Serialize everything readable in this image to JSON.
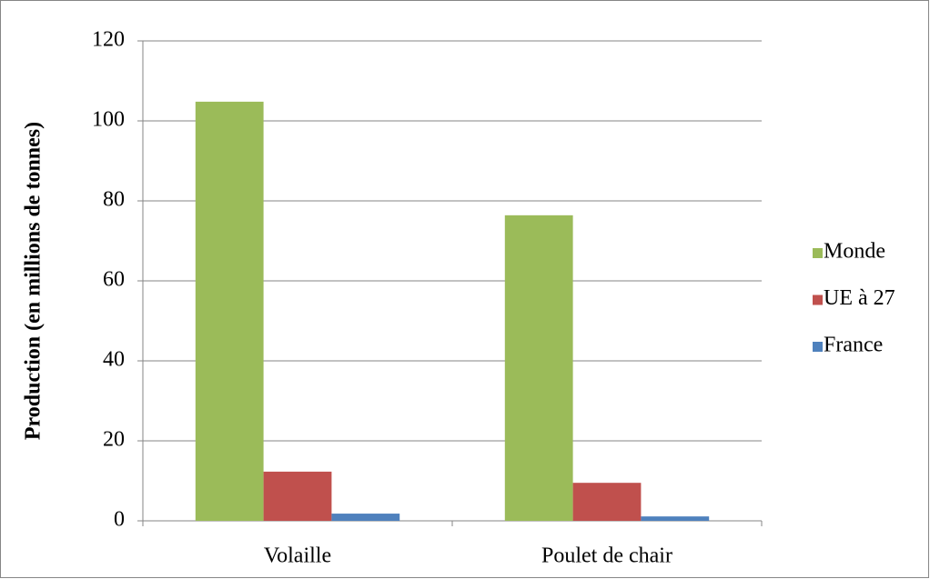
{
  "chart_data": {
    "type": "bar",
    "y_label": "Production (en millions de tonnes)",
    "categories": [
      "Volaille",
      "Poulet de chair"
    ],
    "series": [
      {
        "name": "Monde",
        "color": "#9bbb59",
        "values": [
          104.8,
          76.4
        ]
      },
      {
        "name": "UE à 27",
        "color": "#c0504d",
        "values": [
          12.3,
          9.5
        ]
      },
      {
        "name": "France",
        "color": "#4f81bd",
        "values": [
          1.8,
          1.1
        ]
      }
    ],
    "ylim": [
      0,
      120
    ],
    "yticks": [
      0,
      20,
      40,
      60,
      80,
      100,
      120
    ],
    "grid": true,
    "legend": "right"
  }
}
